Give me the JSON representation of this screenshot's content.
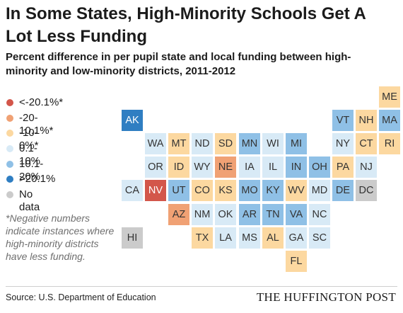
{
  "title": "In Some States, High-Minority Schools Get A Lot Less Funding",
  "subtitle": "Percent difference in per pupil state and local funding between high-minority and low-minority districts, 2011-2012",
  "footnote": "*Negative numbers indicate instances where high-minority districts have less funding.",
  "source": "Source: U.S. Department of Education",
  "brand": "THE HUFFINGTON POST",
  "colors": {
    "lt_neg20": "#d3564a",
    "neg20_10": "#f0a174",
    "neg10_0": "#fcd8a0",
    "0_10": "#d8eaf6",
    "10_20": "#8fc0e6",
    "gt20": "#2f7ec2",
    "no_data": "#cbcbcb"
  },
  "chart_data": {
    "type": "tile-map",
    "legend": [
      {
        "key": "lt_neg20",
        "label": "<-20.1%*"
      },
      {
        "key": "neg20_10",
        "label": "-20-10.1%*"
      },
      {
        "key": "neg10_0",
        "label": "-10-0%*"
      },
      {
        "key": "0_10",
        "label": "0.1-10%"
      },
      {
        "key": "10_20",
        "label": "10.1-20%"
      },
      {
        "key": "gt20",
        "label": ">20.1%"
      },
      {
        "key": "no_data",
        "label": "No data"
      }
    ],
    "states": [
      {
        "abbr": "ME",
        "row": 0,
        "col": 11,
        "cat": "neg10_0"
      },
      {
        "abbr": "AK",
        "row": 1,
        "col": 0,
        "cat": "gt20"
      },
      {
        "abbr": "VT",
        "row": 1,
        "col": 9,
        "cat": "10_20"
      },
      {
        "abbr": "NH",
        "row": 1,
        "col": 10,
        "cat": "neg10_0"
      },
      {
        "abbr": "MA",
        "row": 1,
        "col": 11,
        "cat": "10_20"
      },
      {
        "abbr": "WA",
        "row": 2,
        "col": 1,
        "cat": "0_10"
      },
      {
        "abbr": "MT",
        "row": 2,
        "col": 2,
        "cat": "neg10_0"
      },
      {
        "abbr": "ND",
        "row": 2,
        "col": 3,
        "cat": "0_10"
      },
      {
        "abbr": "SD",
        "row": 2,
        "col": 4,
        "cat": "neg10_0"
      },
      {
        "abbr": "MN",
        "row": 2,
        "col": 5,
        "cat": "10_20"
      },
      {
        "abbr": "WI",
        "row": 2,
        "col": 6,
        "cat": "0_10"
      },
      {
        "abbr": "MI",
        "row": 2,
        "col": 7,
        "cat": "10_20"
      },
      {
        "abbr": "NY",
        "row": 2,
        "col": 9,
        "cat": "0_10"
      },
      {
        "abbr": "CT",
        "row": 2,
        "col": 10,
        "cat": "neg10_0"
      },
      {
        "abbr": "RI",
        "row": 2,
        "col": 11,
        "cat": "neg10_0"
      },
      {
        "abbr": "OR",
        "row": 3,
        "col": 1,
        "cat": "0_10"
      },
      {
        "abbr": "ID",
        "row": 3,
        "col": 2,
        "cat": "neg10_0"
      },
      {
        "abbr": "WY",
        "row": 3,
        "col": 3,
        "cat": "0_10"
      },
      {
        "abbr": "NE",
        "row": 3,
        "col": 4,
        "cat": "neg20_10"
      },
      {
        "abbr": "IA",
        "row": 3,
        "col": 5,
        "cat": "0_10"
      },
      {
        "abbr": "IL",
        "row": 3,
        "col": 6,
        "cat": "0_10"
      },
      {
        "abbr": "IN",
        "row": 3,
        "col": 7,
        "cat": "10_20"
      },
      {
        "abbr": "OH",
        "row": 3,
        "col": 8,
        "cat": "10_20"
      },
      {
        "abbr": "PA",
        "row": 3,
        "col": 9,
        "cat": "neg10_0"
      },
      {
        "abbr": "NJ",
        "row": 3,
        "col": 10,
        "cat": "0_10"
      },
      {
        "abbr": "CA",
        "row": 4,
        "col": 0,
        "cat": "0_10"
      },
      {
        "abbr": "NV",
        "row": 4,
        "col": 1,
        "cat": "lt_neg20"
      },
      {
        "abbr": "UT",
        "row": 4,
        "col": 2,
        "cat": "10_20"
      },
      {
        "abbr": "CO",
        "row": 4,
        "col": 3,
        "cat": "neg10_0"
      },
      {
        "abbr": "KS",
        "row": 4,
        "col": 4,
        "cat": "neg10_0"
      },
      {
        "abbr": "MO",
        "row": 4,
        "col": 5,
        "cat": "10_20"
      },
      {
        "abbr": "KY",
        "row": 4,
        "col": 6,
        "cat": "10_20"
      },
      {
        "abbr": "WV",
        "row": 4,
        "col": 7,
        "cat": "neg10_0"
      },
      {
        "abbr": "MD",
        "row": 4,
        "col": 8,
        "cat": "0_10"
      },
      {
        "abbr": "DE",
        "row": 4,
        "col": 9,
        "cat": "10_20"
      },
      {
        "abbr": "DC",
        "row": 4,
        "col": 10,
        "cat": "no_data"
      },
      {
        "abbr": "AZ",
        "row": 5,
        "col": 2,
        "cat": "neg20_10"
      },
      {
        "abbr": "NM",
        "row": 5,
        "col": 3,
        "cat": "0_10"
      },
      {
        "abbr": "OK",
        "row": 5,
        "col": 4,
        "cat": "0_10"
      },
      {
        "abbr": "AR",
        "row": 5,
        "col": 5,
        "cat": "10_20"
      },
      {
        "abbr": "TN",
        "row": 5,
        "col": 6,
        "cat": "10_20"
      },
      {
        "abbr": "VA",
        "row": 5,
        "col": 7,
        "cat": "10_20"
      },
      {
        "abbr": "NC",
        "row": 5,
        "col": 8,
        "cat": "0_10"
      },
      {
        "abbr": "HI",
        "row": 6,
        "col": 0,
        "cat": "no_data"
      },
      {
        "abbr": "TX",
        "row": 6,
        "col": 3,
        "cat": "neg10_0"
      },
      {
        "abbr": "LA",
        "row": 6,
        "col": 4,
        "cat": "0_10"
      },
      {
        "abbr": "MS",
        "row": 6,
        "col": 5,
        "cat": "0_10"
      },
      {
        "abbr": "AL",
        "row": 6,
        "col": 6,
        "cat": "neg10_0"
      },
      {
        "abbr": "GA",
        "row": 6,
        "col": 7,
        "cat": "0_10"
      },
      {
        "abbr": "SC",
        "row": 6,
        "col": 8,
        "cat": "0_10"
      },
      {
        "abbr": "FL",
        "row": 7,
        "col": 7,
        "cat": "neg10_0"
      }
    ]
  }
}
